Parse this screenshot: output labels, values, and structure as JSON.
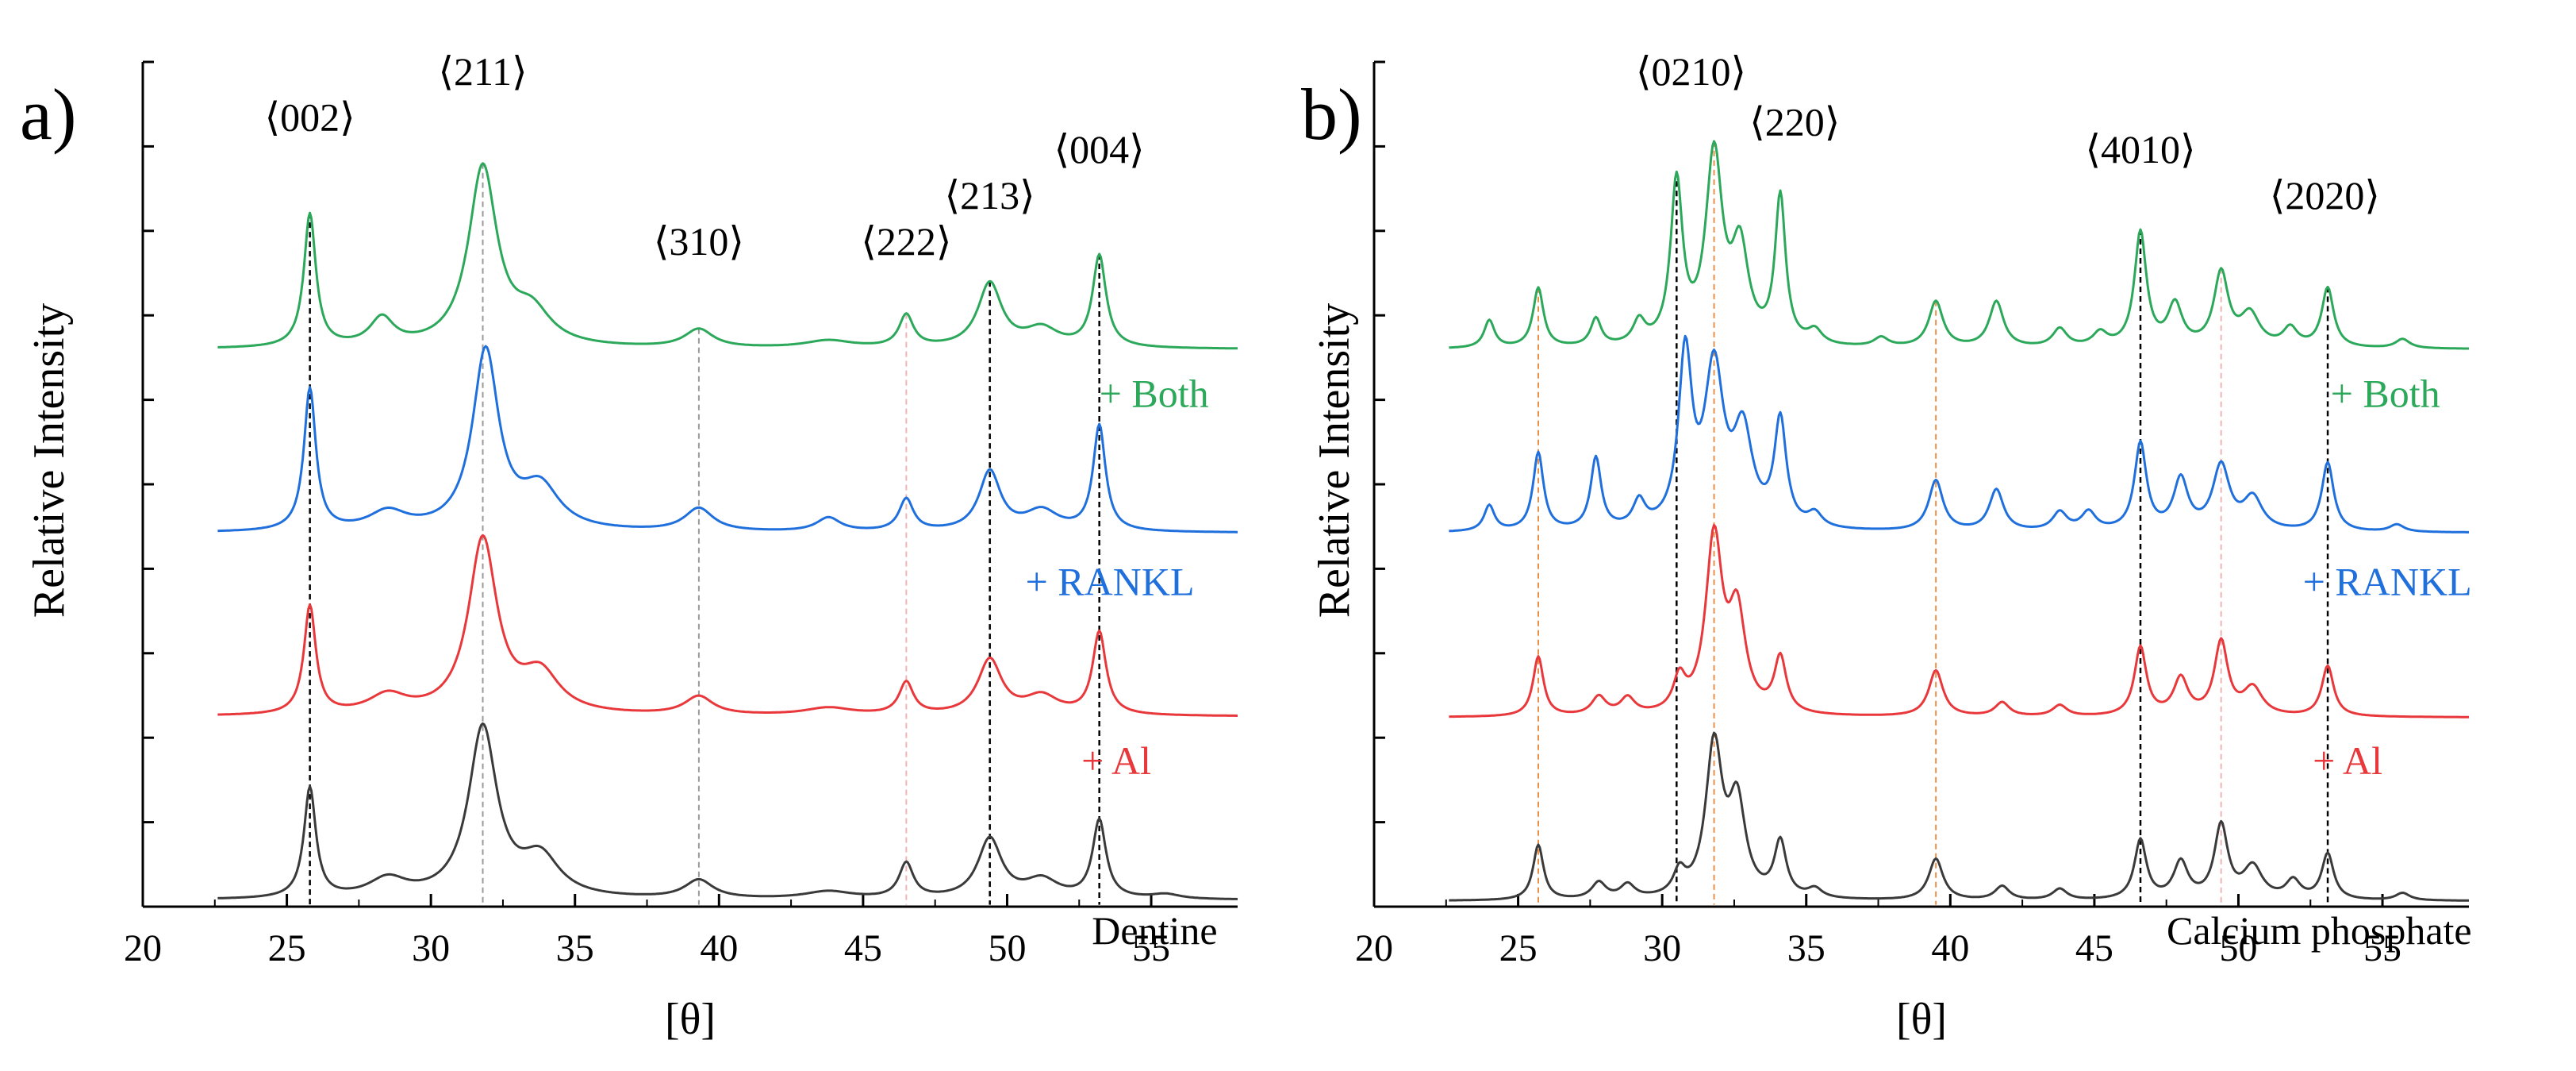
{
  "colors": {
    "both": "#2ca85a",
    "rankl": "#1f6fdc",
    "al": "#e8383b",
    "base": "#3a3a3a",
    "axis": "#000000",
    "ref_black": "#000000",
    "ref_gray": "#9a9a9a",
    "ref_orange": "#e8904a",
    "ref_pink": "#f0b4b4"
  },
  "chart_data": [
    {
      "type": "line",
      "panel_label": "a)",
      "xlabel": "[θ]",
      "ylabel": "Relative Intensity",
      "xlim": [
        20,
        58
      ],
      "ylim": [
        0,
        9.2
      ],
      "xticks": [
        20,
        25,
        30,
        35,
        40,
        45,
        50,
        55
      ],
      "y_minor_ticks": 10,
      "x_range": [
        22.6,
        58
      ],
      "series_offsets": [
        0,
        2,
        4,
        6
      ],
      "reference_lines": [
        {
          "x": 25.8,
          "style": "black"
        },
        {
          "x": 31.8,
          "style": "gray"
        },
        {
          "x": 39.3,
          "style": "gray"
        },
        {
          "x": 46.5,
          "style": "pink"
        },
        {
          "x": 49.4,
          "style": "black"
        },
        {
          "x": 53.2,
          "style": "black"
        }
      ],
      "peak_labels": [
        {
          "text": "⟨002⟩",
          "x": 25.8,
          "y": 8.45
        },
        {
          "text": "⟨211⟩",
          "x": 31.8,
          "y": 8.95
        },
        {
          "text": "⟨310⟩",
          "x": 39.3,
          "y": 7.1
        },
        {
          "text": "⟨222⟩",
          "x": 46.5,
          "y": 7.1
        },
        {
          "text": "⟨213⟩",
          "x": 49.4,
          "y": 7.6
        },
        {
          "text": "⟨004⟩",
          "x": 53.2,
          "y": 8.1
        }
      ],
      "series": [
        {
          "name": "Dentine",
          "label_text": "Dentine",
          "color_key": "base",
          "label_color": "#000000",
          "label_x": 57.3,
          "label_y": -0.25,
          "baseline": 0.07,
          "peaks": [
            {
              "x": 25.8,
              "h": 1.2,
              "w": 0.25
            },
            {
              "x": 28.5,
              "h": 0.2,
              "w": 0.8
            },
            {
              "x": 31.8,
              "h": 1.85,
              "w": 0.6
            },
            {
              "x": 33.8,
              "h": 0.42,
              "w": 0.8
            },
            {
              "x": 39.3,
              "h": 0.2,
              "w": 0.6
            },
            {
              "x": 43.8,
              "h": 0.08,
              "w": 1.0
            },
            {
              "x": 46.5,
              "h": 0.38,
              "w": 0.3
            },
            {
              "x": 49.4,
              "h": 0.65,
              "w": 0.5
            },
            {
              "x": 51.2,
              "h": 0.2,
              "w": 0.7
            },
            {
              "x": 53.2,
              "h": 0.85,
              "w": 0.28
            },
            {
              "x": 55.5,
              "h": 0.05,
              "w": 0.6
            }
          ]
        },
        {
          "name": "+ Al",
          "label_text": "+ Al",
          "color_key": "al",
          "label_color": "#e8383b",
          "label_x": 55.0,
          "label_y": -0.4,
          "baseline": 0.07,
          "peaks": [
            {
              "x": 25.8,
              "h": 1.18,
              "w": 0.25
            },
            {
              "x": 28.5,
              "h": 0.2,
              "w": 0.8
            },
            {
              "x": 31.8,
              "h": 1.9,
              "w": 0.6
            },
            {
              "x": 33.8,
              "h": 0.42,
              "w": 0.8
            },
            {
              "x": 39.3,
              "h": 0.2,
              "w": 0.6
            },
            {
              "x": 43.8,
              "h": 0.08,
              "w": 1.0
            },
            {
              "x": 46.5,
              "h": 0.35,
              "w": 0.3
            },
            {
              "x": 49.4,
              "h": 0.6,
              "w": 0.5
            },
            {
              "x": 51.2,
              "h": 0.2,
              "w": 0.7
            },
            {
              "x": 53.2,
              "h": 0.9,
              "w": 0.28
            }
          ]
        },
        {
          "name": "+ RANKL",
          "label_text": "+ RANKL",
          "color_key": "rankl",
          "label_color": "#1f6fdc",
          "label_x": 56.5,
          "label_y": -0.45,
          "baseline": 0.07,
          "peaks": [
            {
              "x": 25.8,
              "h": 1.55,
              "w": 0.25
            },
            {
              "x": 28.5,
              "h": 0.2,
              "w": 0.8
            },
            {
              "x": 31.9,
              "h": 1.95,
              "w": 0.55
            },
            {
              "x": 33.8,
              "h": 0.45,
              "w": 0.8
            },
            {
              "x": 39.3,
              "h": 0.25,
              "w": 0.6
            },
            {
              "x": 43.8,
              "h": 0.15,
              "w": 0.5
            },
            {
              "x": 46.5,
              "h": 0.35,
              "w": 0.3
            },
            {
              "x": 49.4,
              "h": 0.65,
              "w": 0.45
            },
            {
              "x": 51.2,
              "h": 0.22,
              "w": 0.7
            },
            {
              "x": 53.2,
              "h": 1.15,
              "w": 0.26
            }
          ]
        },
        {
          "name": "+ Both",
          "label_text": "+ Both",
          "color_key": "both",
          "label_color": "#2ca85a",
          "label_x": 57.0,
          "label_y": -0.4,
          "baseline": 0.07,
          "peaks": [
            {
              "x": 25.8,
              "h": 1.45,
              "w": 0.25
            },
            {
              "x": 28.3,
              "h": 0.3,
              "w": 0.5
            },
            {
              "x": 31.8,
              "h": 1.95,
              "w": 0.6
            },
            {
              "x": 33.5,
              "h": 0.35,
              "w": 0.8
            },
            {
              "x": 39.3,
              "h": 0.2,
              "w": 0.6
            },
            {
              "x": 43.8,
              "h": 0.08,
              "w": 1.0
            },
            {
              "x": 46.5,
              "h": 0.35,
              "w": 0.3
            },
            {
              "x": 49.4,
              "h": 0.7,
              "w": 0.5
            },
            {
              "x": 51.2,
              "h": 0.2,
              "w": 0.7
            },
            {
              "x": 53.2,
              "h": 1.0,
              "w": 0.28
            }
          ]
        }
      ]
    },
    {
      "type": "line",
      "panel_label": "b)",
      "xlabel": "[θ]",
      "ylabel": "Relative Intensity",
      "xlim": [
        20,
        58
      ],
      "ylim": [
        0,
        9.2
      ],
      "xticks": [
        20,
        25,
        30,
        35,
        40,
        45,
        50,
        55
      ],
      "y_minor_ticks": 10,
      "x_range": [
        22.6,
        58
      ],
      "series_offsets": [
        0,
        2,
        4,
        6
      ],
      "reference_lines": [
        {
          "x": 25.7,
          "style": "orange"
        },
        {
          "x": 30.5,
          "style": "black"
        },
        {
          "x": 31.8,
          "style": "orange"
        },
        {
          "x": 39.5,
          "style": "orange"
        },
        {
          "x": 46.6,
          "style": "black"
        },
        {
          "x": 49.4,
          "style": "pink"
        },
        {
          "x": 53.1,
          "style": "black"
        }
      ],
      "peak_labels": [
        {
          "text": "⟨0210⟩",
          "x": 31.0,
          "y": 8.95
        },
        {
          "text": "⟨220⟩",
          "x": 34.6,
          "y": 8.4
        },
        {
          "text": "⟨4010⟩",
          "x": 46.6,
          "y": 8.1
        },
        {
          "text": "⟨2020⟩",
          "x": 53.0,
          "y": 7.6
        }
      ],
      "series": [
        {
          "name": "Calcium phosphate",
          "label_text": "Calcium phosphate",
          "color_key": "base",
          "label_color": "#000000",
          "label_x": 58.1,
          "label_y": -0.25,
          "baseline": 0.06,
          "peaks": [
            {
              "x": 25.7,
              "h": 0.6,
              "w": 0.22
            },
            {
              "x": 27.8,
              "h": 0.18,
              "w": 0.3
            },
            {
              "x": 28.8,
              "h": 0.15,
              "w": 0.3
            },
            {
              "x": 30.6,
              "h": 0.25,
              "w": 0.25
            },
            {
              "x": 31.8,
              "h": 1.65,
              "w": 0.35
            },
            {
              "x": 32.6,
              "h": 1.0,
              "w": 0.35
            },
            {
              "x": 34.1,
              "h": 0.6,
              "w": 0.25
            },
            {
              "x": 35.3,
              "h": 0.1,
              "w": 0.3
            },
            {
              "x": 39.5,
              "h": 0.45,
              "w": 0.3
            },
            {
              "x": 41.8,
              "h": 0.15,
              "w": 0.3
            },
            {
              "x": 43.8,
              "h": 0.12,
              "w": 0.3
            },
            {
              "x": 46.6,
              "h": 0.65,
              "w": 0.25
            },
            {
              "x": 48.0,
              "h": 0.4,
              "w": 0.3
            },
            {
              "x": 49.4,
              "h": 0.8,
              "w": 0.28
            },
            {
              "x": 50.5,
              "h": 0.35,
              "w": 0.4
            },
            {
              "x": 51.9,
              "h": 0.2,
              "w": 0.3
            },
            {
              "x": 53.1,
              "h": 0.5,
              "w": 0.25
            },
            {
              "x": 55.7,
              "h": 0.08,
              "w": 0.3
            }
          ]
        },
        {
          "name": "+ Al",
          "label_text": "+ Al",
          "color_key": "al",
          "label_color": "#e8383b",
          "label_x": 55.0,
          "label_y": -0.4,
          "baseline": 0.06,
          "peaks": [
            {
              "x": 25.7,
              "h": 0.65,
              "w": 0.22
            },
            {
              "x": 27.8,
              "h": 0.2,
              "w": 0.3
            },
            {
              "x": 28.8,
              "h": 0.18,
              "w": 0.3
            },
            {
              "x": 30.6,
              "h": 0.35,
              "w": 0.25
            },
            {
              "x": 31.8,
              "h": 1.9,
              "w": 0.35
            },
            {
              "x": 32.6,
              "h": 1.05,
              "w": 0.35
            },
            {
              "x": 34.1,
              "h": 0.6,
              "w": 0.25
            },
            {
              "x": 39.5,
              "h": 0.5,
              "w": 0.3
            },
            {
              "x": 41.8,
              "h": 0.15,
              "w": 0.3
            },
            {
              "x": 43.8,
              "h": 0.12,
              "w": 0.3
            },
            {
              "x": 46.6,
              "h": 0.75,
              "w": 0.25
            },
            {
              "x": 48.0,
              "h": 0.4,
              "w": 0.3
            },
            {
              "x": 49.4,
              "h": 0.8,
              "w": 0.28
            },
            {
              "x": 50.5,
              "h": 0.3,
              "w": 0.4
            },
            {
              "x": 53.1,
              "h": 0.55,
              "w": 0.25
            }
          ]
        },
        {
          "name": "+ RANKL",
          "label_text": "+ RANKL",
          "color_key": "rankl",
          "label_color": "#1f6fdc",
          "label_x": 58.1,
          "label_y": -0.45,
          "baseline": 0.07,
          "peaks": [
            {
              "x": 24.0,
              "h": 0.28,
              "w": 0.22
            },
            {
              "x": 25.7,
              "h": 0.85,
              "w": 0.22
            },
            {
              "x": 27.7,
              "h": 0.78,
              "w": 0.22
            },
            {
              "x": 29.2,
              "h": 0.28,
              "w": 0.25
            },
            {
              "x": 30.8,
              "h": 1.85,
              "w": 0.28
            },
            {
              "x": 31.8,
              "h": 1.7,
              "w": 0.4
            },
            {
              "x": 32.8,
              "h": 1.0,
              "w": 0.4
            },
            {
              "x": 34.1,
              "h": 1.15,
              "w": 0.25
            },
            {
              "x": 35.3,
              "h": 0.15,
              "w": 0.3
            },
            {
              "x": 39.5,
              "h": 0.55,
              "w": 0.3
            },
            {
              "x": 41.6,
              "h": 0.45,
              "w": 0.3
            },
            {
              "x": 43.8,
              "h": 0.2,
              "w": 0.3
            },
            {
              "x": 44.8,
              "h": 0.2,
              "w": 0.3
            },
            {
              "x": 46.6,
              "h": 0.95,
              "w": 0.25
            },
            {
              "x": 48.0,
              "h": 0.55,
              "w": 0.3
            },
            {
              "x": 49.4,
              "h": 0.7,
              "w": 0.35
            },
            {
              "x": 50.5,
              "h": 0.35,
              "w": 0.4
            },
            {
              "x": 53.1,
              "h": 0.75,
              "w": 0.25
            },
            {
              "x": 55.5,
              "h": 0.08,
              "w": 0.3
            }
          ]
        },
        {
          "name": "+ Both",
          "label_text": "+ Both",
          "color_key": "both",
          "label_color": "#2ca85a",
          "label_x": 57.0,
          "label_y": -0.4,
          "baseline": 0.07,
          "peaks": [
            {
              "x": 24.0,
              "h": 0.3,
              "w": 0.22
            },
            {
              "x": 25.7,
              "h": 0.65,
              "w": 0.22
            },
            {
              "x": 27.7,
              "h": 0.3,
              "w": 0.22
            },
            {
              "x": 29.2,
              "h": 0.25,
              "w": 0.25
            },
            {
              "x": 30.5,
              "h": 1.75,
              "w": 0.25
            },
            {
              "x": 31.8,
              "h": 2.05,
              "w": 0.35
            },
            {
              "x": 32.7,
              "h": 1.0,
              "w": 0.35
            },
            {
              "x": 34.1,
              "h": 1.6,
              "w": 0.22
            },
            {
              "x": 35.3,
              "h": 0.15,
              "w": 0.3
            },
            {
              "x": 37.6,
              "h": 0.1,
              "w": 0.3
            },
            {
              "x": 39.5,
              "h": 0.5,
              "w": 0.3
            },
            {
              "x": 41.6,
              "h": 0.5,
              "w": 0.3
            },
            {
              "x": 43.8,
              "h": 0.2,
              "w": 0.3
            },
            {
              "x": 45.2,
              "h": 0.15,
              "w": 0.3
            },
            {
              "x": 46.6,
              "h": 1.25,
              "w": 0.25
            },
            {
              "x": 47.8,
              "h": 0.45,
              "w": 0.3
            },
            {
              "x": 49.4,
              "h": 0.8,
              "w": 0.3
            },
            {
              "x": 50.4,
              "h": 0.35,
              "w": 0.4
            },
            {
              "x": 51.8,
              "h": 0.2,
              "w": 0.3
            },
            {
              "x": 53.1,
              "h": 0.65,
              "w": 0.25
            },
            {
              "x": 55.7,
              "h": 0.1,
              "w": 0.3
            }
          ]
        }
      ]
    }
  ]
}
